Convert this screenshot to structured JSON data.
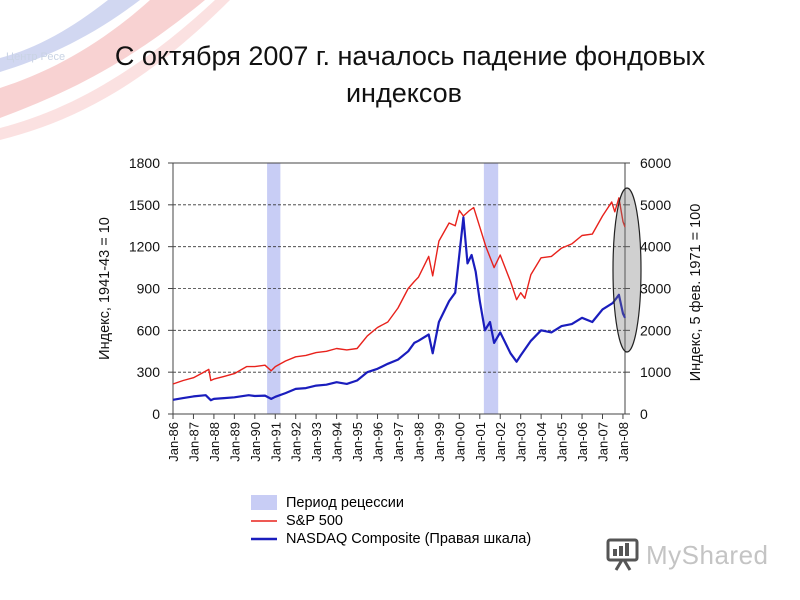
{
  "slide": {
    "title_line1": "С октября 2007 г. началось падение фондовых",
    "title_line2": "индексов",
    "watermark": "Центр Ресе",
    "brand_name": "MyShared",
    "brand_icon": "presentation-board-icon"
  },
  "chart_data": {
    "type": "line",
    "x_tick_labels": [
      "Jan-86",
      "Jan-87",
      "Jan-88",
      "Jan-89",
      "Jan-90",
      "Jan-91",
      "Jan-92",
      "Jan-93",
      "Jan-94",
      "Jan-95",
      "Jan-96",
      "Jan-97",
      "Jan-98",
      "Jan-99",
      "Jan-00",
      "Jan-01",
      "Jan-02",
      "Jan-03",
      "Jan-04",
      "Jan-05",
      "Jan-06",
      "Jan-07",
      "Jan-08"
    ],
    "x_range": [
      1986.0,
      2008.1
    ],
    "y_left": {
      "label": "Индекс, 1941-43 = 10",
      "range": [
        0,
        1800
      ],
      "ticks": [
        0,
        300,
        600,
        900,
        1200,
        1500,
        1800
      ]
    },
    "y_right": {
      "label": "Индекс, 5 фев. 1971 = 100",
      "range": [
        0,
        6000
      ],
      "ticks": [
        0,
        1000,
        2000,
        3000,
        4000,
        5000,
        6000
      ]
    },
    "grid": "horizontal dashed",
    "recessions": [
      [
        1990.6,
        1991.25
      ],
      [
        2001.2,
        2001.9
      ]
    ],
    "highlight": "ellipse around late 2007 - early 2008",
    "legend_placement": "below",
    "legend": [
      {
        "label": "Период рецессии",
        "kind": "band",
        "color": "#c8cdf5"
      },
      {
        "label": "S&P 500",
        "kind": "line",
        "color": "#e8221c"
      },
      {
        "label": "NASDAQ Composite (Правая шкала)",
        "kind": "line",
        "color": "#1a1dbd"
      }
    ],
    "series": [
      {
        "name": "S&P 500",
        "axis": "left",
        "color": "#e8221c",
        "x": [
          1986.0,
          1986.5,
          1987.0,
          1987.5,
          1987.75,
          1987.85,
          1988.0,
          1988.5,
          1989.0,
          1989.6,
          1990.0,
          1990.5,
          1990.8,
          1991.0,
          1991.5,
          1992.0,
          1992.5,
          1993.0,
          1993.5,
          1994.0,
          1994.5,
          1995.0,
          1995.5,
          1996.0,
          1996.5,
          1997.0,
          1997.5,
          1997.8,
          1998.0,
          1998.5,
          1998.7,
          1999.0,
          1999.5,
          1999.8,
          2000.0,
          2000.2,
          2000.5,
          2000.7,
          2001.0,
          2001.3,
          2001.7,
          2002.0,
          2002.5,
          2002.8,
          2003.0,
          2003.2,
          2003.5,
          2004.0,
          2004.5,
          2005.0,
          2005.5,
          2006.0,
          2006.5,
          2007.0,
          2007.45,
          2007.6,
          2007.8,
          2008.0,
          2008.1
        ],
        "y": [
          215,
          240,
          260,
          300,
          320,
          240,
          250,
          270,
          290,
          340,
          340,
          350,
          310,
          340,
          380,
          410,
          420,
          440,
          450,
          470,
          460,
          470,
          560,
          620,
          660,
          760,
          900,
          950,
          980,
          1130,
          990,
          1240,
          1370,
          1350,
          1460,
          1420,
          1460,
          1480,
          1340,
          1200,
          1050,
          1140,
          950,
          820,
          870,
          830,
          1000,
          1120,
          1130,
          1190,
          1220,
          1280,
          1290,
          1420,
          1520,
          1450,
          1550,
          1380,
          1340
        ]
      },
      {
        "name": "NASDAQ Composite",
        "axis": "right",
        "color": "#1a1dbd",
        "x": [
          1986.0,
          1986.5,
          1987.0,
          1987.6,
          1987.85,
          1988.0,
          1988.5,
          1989.0,
          1989.7,
          1990.0,
          1990.5,
          1990.8,
          1991.0,
          1991.5,
          1992.0,
          1992.5,
          1993.0,
          1993.5,
          1994.0,
          1994.5,
          1995.0,
          1995.5,
          1996.0,
          1996.5,
          1997.0,
          1997.5,
          1997.8,
          1998.0,
          1998.5,
          1998.7,
          1999.0,
          1999.5,
          1999.8,
          2000.0,
          2000.2,
          2000.4,
          2000.6,
          2000.8,
          2001.0,
          2001.25,
          2001.5,
          2001.7,
          2002.0,
          2002.5,
          2002.8,
          2003.0,
          2003.5,
          2004.0,
          2004.5,
          2005.0,
          2005.5,
          2006.0,
          2006.5,
          2007.0,
          2007.5,
          2007.8,
          2008.0,
          2008.1
        ],
        "y": [
          340,
          380,
          420,
          450,
          330,
          360,
          380,
          400,
          450,
          430,
          440,
          360,
          410,
          500,
          600,
          620,
          680,
          700,
          760,
          720,
          800,
          1000,
          1080,
          1200,
          1300,
          1500,
          1700,
          1750,
          1900,
          1450,
          2200,
          2700,
          2900,
          3800,
          4700,
          3600,
          3800,
          3400,
          2700,
          2000,
          2200,
          1700,
          1950,
          1450,
          1250,
          1400,
          1750,
          2000,
          1950,
          2100,
          2150,
          2300,
          2200,
          2500,
          2650,
          2850,
          2400,
          2300
        ]
      }
    ]
  }
}
